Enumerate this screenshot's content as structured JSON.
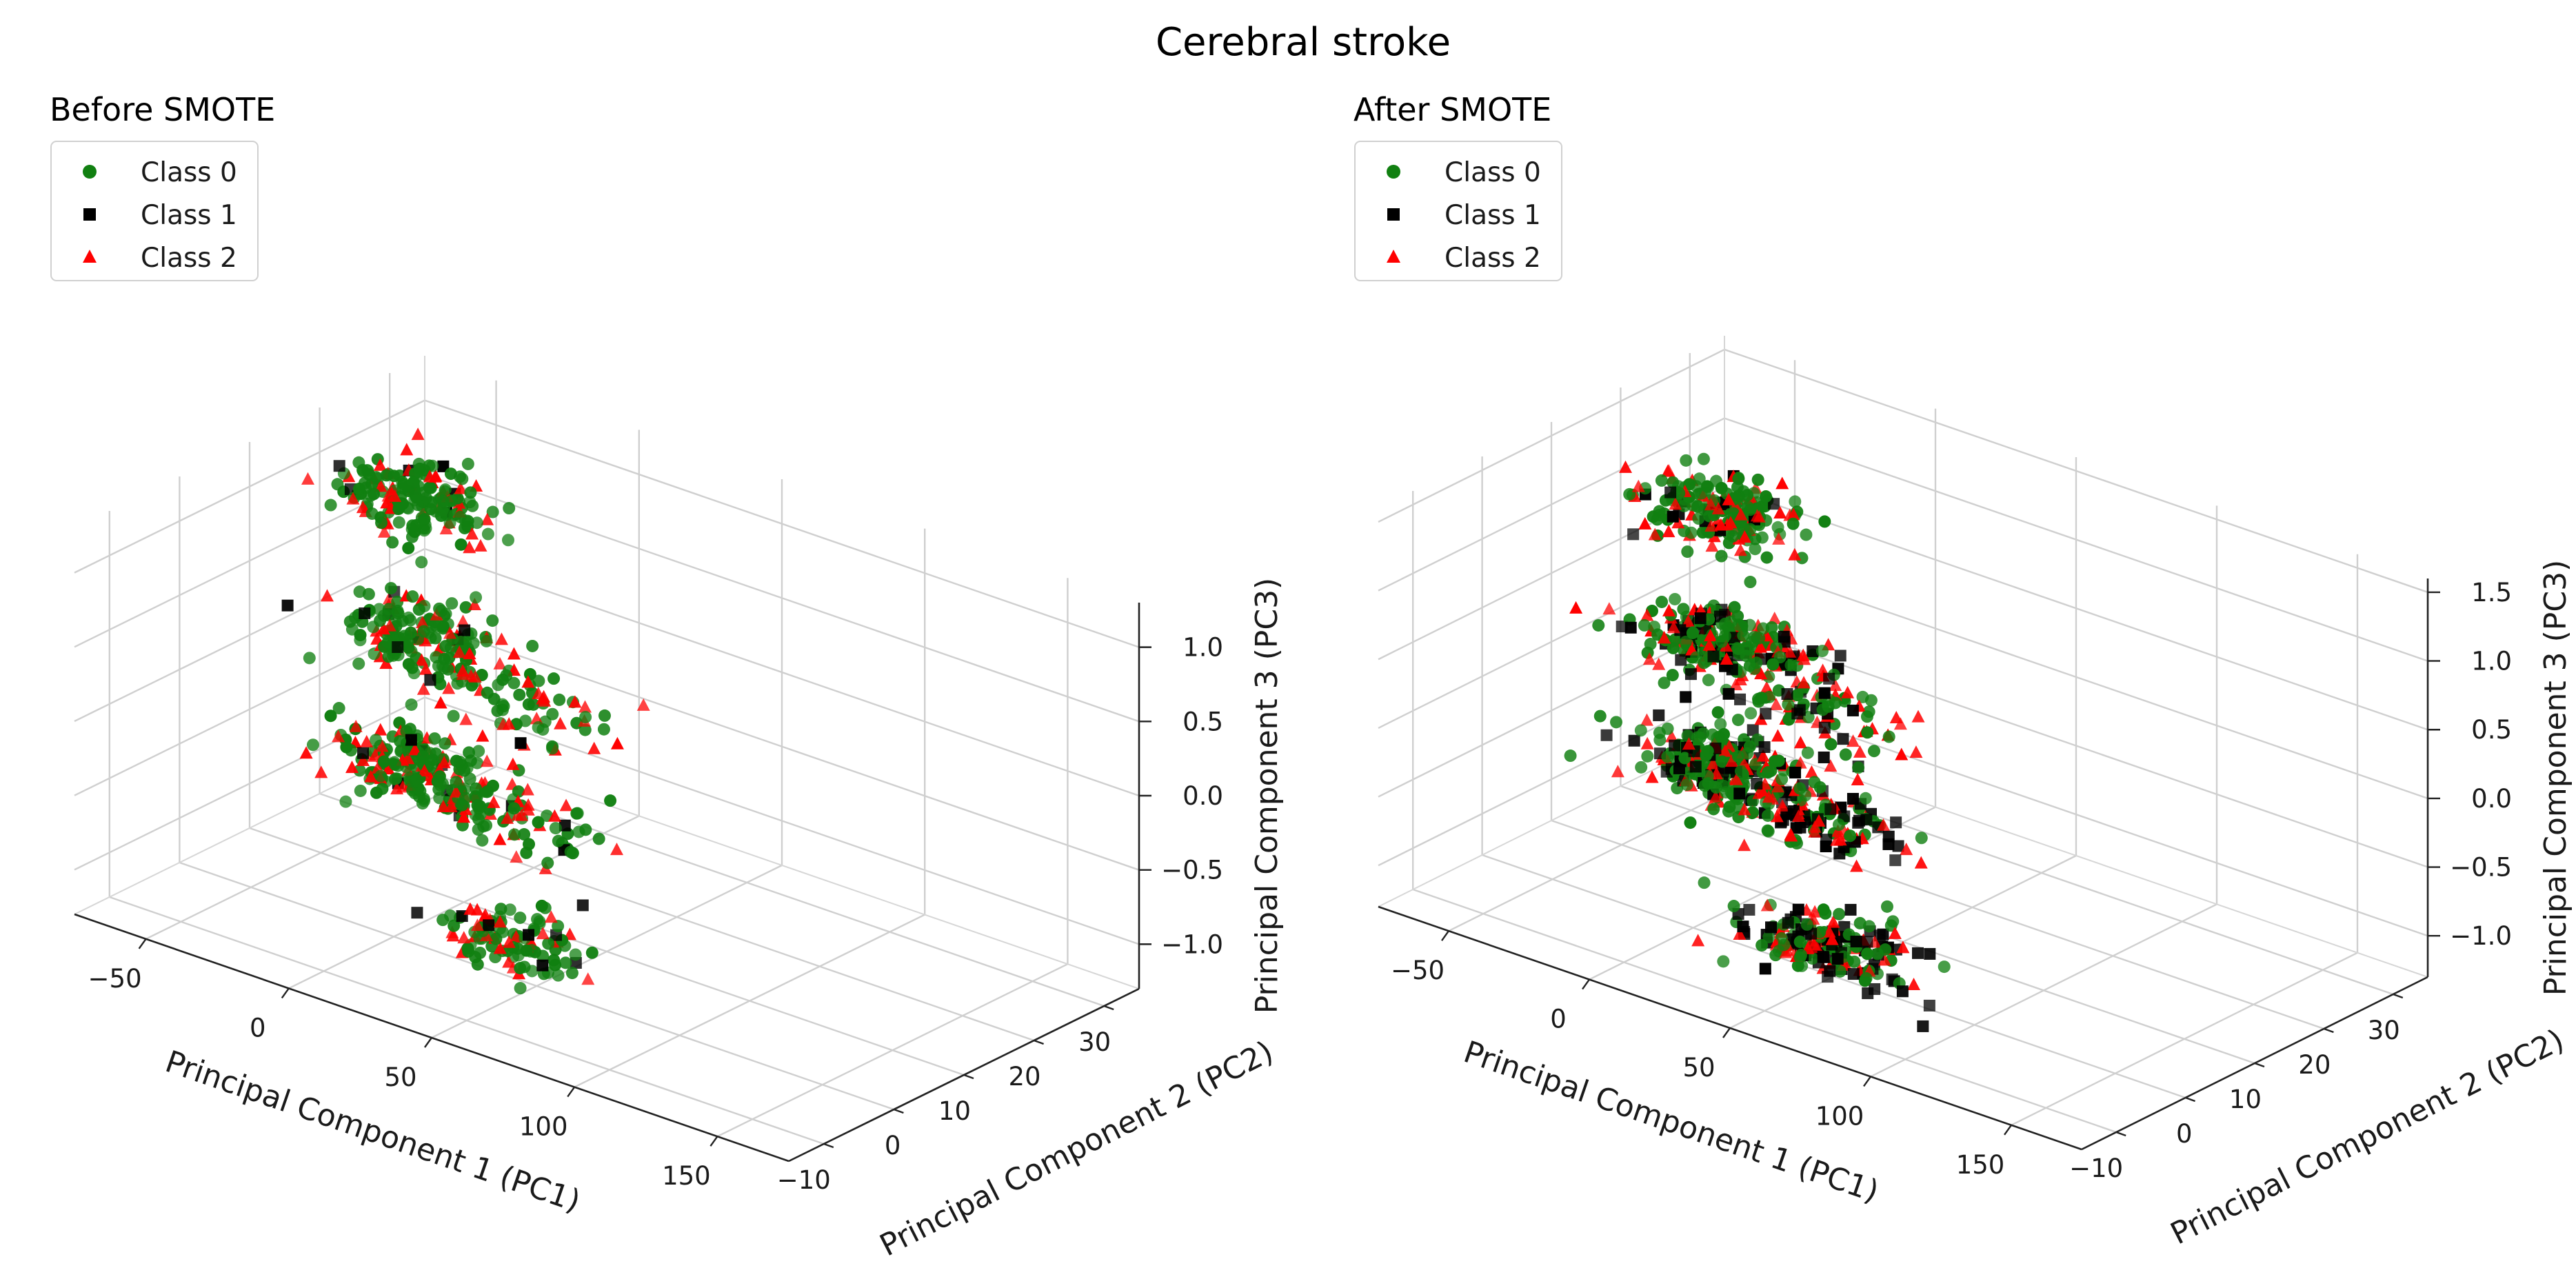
{
  "figure": {
    "suptitle": "Cerebral stroke"
  },
  "colors": {
    "class0": "#118011",
    "class1": "#000000",
    "class2": "#ff0000"
  },
  "chart_data": [
    {
      "type": "scatter",
      "title": "Before SMOTE",
      "xlabel": "Principal Component 1 (PC1)",
      "ylabel": "Principal Component 2 (PC2)",
      "zlabel": "Principal Component 3 (PC3)",
      "xlim": [
        -75,
        175
      ],
      "ylim": [
        -15,
        35
      ],
      "zlim": [
        -1.3,
        1.3
      ],
      "xticks": [
        -50,
        0,
        50,
        100,
        150
      ],
      "yticks": [
        -10,
        0,
        10,
        20,
        30
      ],
      "zticks": [
        -1.0,
        -0.5,
        0.0,
        0.5,
        1.0
      ],
      "ztick_labels": [
        "−1.0",
        "−0.5",
        "0.0",
        "0.5",
        "1.0"
      ],
      "legend": [
        "Class 0",
        "Class 1",
        "Class 2"
      ],
      "series": [
        {
          "name": "Class 0",
          "marker": "circle",
          "clusters": [
            {
              "x": -40,
              "y": 20,
              "z": -0.9,
              "sx": 12,
              "sy": 2.5,
              "sz": 0.1,
              "n": 140
            },
            {
              "x": -40,
              "y": 20,
              "z": 0.0,
              "sx": 12,
              "sy": 2.5,
              "sz": 0.1,
              "n": 120
            },
            {
              "x": -40,
              "y": 20,
              "z": 0.9,
              "sx": 12,
              "sy": 2.5,
              "sz": 0.1,
              "n": 130
            },
            {
              "x": 55,
              "y": -5,
              "z": -0.85,
              "sx": 14,
              "sy": 2.5,
              "sz": 0.1,
              "n": 70
            },
            {
              "x": 55,
              "y": -5,
              "z": 0.0,
              "sx": 14,
              "sy": 2.5,
              "sz": 0.1,
              "n": 40
            },
            {
              "x": 55,
              "y": -5,
              "z": 0.75,
              "sx": 14,
              "sy": 2.5,
              "sz": 0.1,
              "n": 40
            }
          ]
        },
        {
          "name": "Class 1",
          "marker": "square",
          "clusters": [
            {
              "x": -40,
              "y": 20,
              "z": -0.9,
              "sx": 14,
              "sy": 2.5,
              "sz": 0.1,
              "n": 6
            },
            {
              "x": -40,
              "y": 20,
              "z": 0.0,
              "sx": 14,
              "sy": 2.5,
              "sz": 0.1,
              "n": 6
            },
            {
              "x": -40,
              "y": 20,
              "z": 0.9,
              "sx": 14,
              "sy": 2.5,
              "sz": 0.1,
              "n": 6
            },
            {
              "x": 55,
              "y": -5,
              "z": -0.85,
              "sx": 16,
              "sy": 2.5,
              "sz": 0.1,
              "n": 8
            },
            {
              "x": 55,
              "y": -5,
              "z": 0.0,
              "sx": 16,
              "sy": 2.5,
              "sz": 0.1,
              "n": 4
            },
            {
              "x": 55,
              "y": -5,
              "z": 0.75,
              "sx": 16,
              "sy": 2.5,
              "sz": 0.1,
              "n": 4
            }
          ]
        },
        {
          "name": "Class 2",
          "marker": "triangle",
          "clusters": [
            {
              "x": -40,
              "y": 20,
              "z": -0.9,
              "sx": 14,
              "sy": 2.5,
              "sz": 0.1,
              "n": 50
            },
            {
              "x": -40,
              "y": 20,
              "z": 0.0,
              "sx": 14,
              "sy": 2.5,
              "sz": 0.1,
              "n": 50
            },
            {
              "x": -40,
              "y": 20,
              "z": 0.9,
              "sx": 14,
              "sy": 2.5,
              "sz": 0.1,
              "n": 45
            },
            {
              "x": 55,
              "y": -5,
              "z": -0.85,
              "sx": 16,
              "sy": 2.5,
              "sz": 0.1,
              "n": 30
            },
            {
              "x": 55,
              "y": -5,
              "z": 0.0,
              "sx": 16,
              "sy": 2.5,
              "sz": 0.1,
              "n": 25
            },
            {
              "x": 55,
              "y": -5,
              "z": 0.75,
              "sx": 16,
              "sy": 2.5,
              "sz": 0.1,
              "n": 25
            }
          ]
        }
      ]
    },
    {
      "type": "scatter",
      "title": "After SMOTE",
      "xlabel": "Principal Component 1 (PC1)",
      "ylabel": "Principal Component 2 (PC2)",
      "zlabel": "Principal Component 3 (PC3)",
      "xlim": [
        -75,
        175
      ],
      "ylim": [
        -15,
        35
      ],
      "zlim": [
        -1.3,
        1.6
      ],
      "xticks": [
        -50,
        0,
        50,
        100,
        150
      ],
      "yticks": [
        -10,
        0,
        10,
        20,
        30
      ],
      "zticks": [
        -1.0,
        -0.5,
        0.0,
        0.5,
        1.0,
        1.5
      ],
      "ztick_labels": [
        "−1.0",
        "−0.5",
        "0.0",
        "0.5",
        "1.0",
        "1.5"
      ],
      "legend": [
        "Class 0",
        "Class 1",
        "Class 2"
      ],
      "series": [
        {
          "name": "Class 0",
          "marker": "circle",
          "clusters": [
            {
              "x": -40,
              "y": 20,
              "z": -0.9,
              "sx": 12,
              "sy": 2.5,
              "sz": 0.1,
              "n": 140
            },
            {
              "x": -40,
              "y": 20,
              "z": 0.0,
              "sx": 12,
              "sy": 2.5,
              "sz": 0.1,
              "n": 120
            },
            {
              "x": -40,
              "y": 20,
              "z": 0.95,
              "sx": 12,
              "sy": 2.5,
              "sz": 0.1,
              "n": 130
            },
            {
              "x": 55,
              "y": -5,
              "z": -0.85,
              "sx": 14,
              "sy": 2.5,
              "sz": 0.1,
              "n": 70
            },
            {
              "x": 55,
              "y": -5,
              "z": 0.0,
              "sx": 14,
              "sy": 2.5,
              "sz": 0.1,
              "n": 40
            },
            {
              "x": 55,
              "y": -5,
              "z": 0.8,
              "sx": 14,
              "sy": 2.5,
              "sz": 0.1,
              "n": 40
            }
          ]
        },
        {
          "name": "Class 1",
          "marker": "square",
          "clusters": [
            {
              "x": -40,
              "y": 20,
              "z": -0.9,
              "sx": 14,
              "sy": 2.5,
              "sz": 0.1,
              "n": 45
            },
            {
              "x": -40,
              "y": 20,
              "z": 0.0,
              "sx": 14,
              "sy": 2.5,
              "sz": 0.1,
              "n": 50
            },
            {
              "x": -40,
              "y": 20,
              "z": 0.95,
              "sx": 14,
              "sy": 2.5,
              "sz": 0.1,
              "n": 15
            },
            {
              "x": 60,
              "y": -5,
              "z": -0.9,
              "sx": 18,
              "sy": 2.5,
              "sz": 0.1,
              "n": 70
            },
            {
              "x": 60,
              "y": -5,
              "z": 0.0,
              "sx": 16,
              "sy": 2.5,
              "sz": 0.1,
              "n": 45
            },
            {
              "x": 55,
              "y": -5,
              "z": 0.8,
              "sx": 16,
              "sy": 2.5,
              "sz": 0.1,
              "n": 20
            }
          ]
        },
        {
          "name": "Class 2",
          "marker": "triangle",
          "clusters": [
            {
              "x": -40,
              "y": 20,
              "z": -0.9,
              "sx": 14,
              "sy": 2.5,
              "sz": 0.1,
              "n": 60
            },
            {
              "x": -40,
              "y": 20,
              "z": 0.0,
              "sx": 14,
              "sy": 2.5,
              "sz": 0.1,
              "n": 70
            },
            {
              "x": -40,
              "y": 20,
              "z": 0.95,
              "sx": 14,
              "sy": 2.5,
              "sz": 0.1,
              "n": 55
            },
            {
              "x": 55,
              "y": -5,
              "z": -0.85,
              "sx": 16,
              "sy": 2.5,
              "sz": 0.1,
              "n": 45
            },
            {
              "x": 55,
              "y": -5,
              "z": 0.0,
              "sx": 16,
              "sy": 2.5,
              "sz": 0.1,
              "n": 40
            },
            {
              "x": 55,
              "y": -5,
              "z": 0.8,
              "sx": 16,
              "sy": 2.5,
              "sz": 0.1,
              "n": 35
            }
          ]
        }
      ]
    }
  ]
}
